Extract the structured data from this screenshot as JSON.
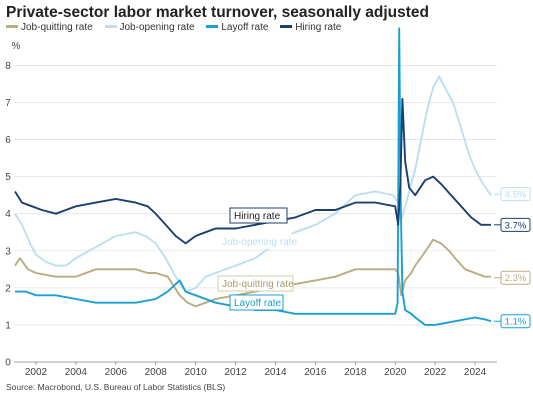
{
  "header": {
    "title": "Private-sector labor market turnover, seasonally adjusted"
  },
  "legend": [
    {
      "label": "Job-quitting rate",
      "color": "#b8ad7f"
    },
    {
      "label": "Job-opening rate",
      "color": "#bcdff0"
    },
    {
      "label": "Layoff rate",
      "color": "#1a9fd2"
    },
    {
      "label": "Hiring rate",
      "color": "#1c3f6e"
    }
  ],
  "footer": {
    "source": "Source: Macrobond, U.S. Bureau of Labor Statistics (BLS)"
  },
  "chart_data": {
    "type": "line",
    "title": "Private-sector labor market turnover, seasonally adjusted",
    "ylabel": "%",
    "xlim": [
      2000.9,
      2025.1
    ],
    "ylim": [
      0,
      8.2
    ],
    "yticks": [
      0,
      1,
      2,
      3,
      4,
      5,
      6,
      7,
      8
    ],
    "xticks": [
      2002,
      2004,
      2006,
      2008,
      2010,
      2012,
      2014,
      2016,
      2018,
      2020,
      2022,
      2024
    ],
    "grid": "horizontal",
    "legend_position": "top-left",
    "series": [
      {
        "name": "Job-quitting rate",
        "color": "#b8ad7f",
        "end_label": "2.3%",
        "inline_label": "Job-quitting rate",
        "points": [
          [
            2000.95,
            2.6
          ],
          [
            2001.2,
            2.8
          ],
          [
            2001.6,
            2.5
          ],
          [
            2002.0,
            2.4
          ],
          [
            2003.0,
            2.3
          ],
          [
            2004.0,
            2.3
          ],
          [
            2005.0,
            2.5
          ],
          [
            2006.0,
            2.5
          ],
          [
            2007.0,
            2.5
          ],
          [
            2007.6,
            2.4
          ],
          [
            2008.0,
            2.4
          ],
          [
            2008.6,
            2.3
          ],
          [
            2009.2,
            1.8
          ],
          [
            2009.6,
            1.6
          ],
          [
            2010.0,
            1.5
          ],
          [
            2010.5,
            1.6
          ],
          [
            2011.0,
            1.7
          ],
          [
            2012.0,
            1.8
          ],
          [
            2013.0,
            1.9
          ],
          [
            2014.0,
            2.0
          ],
          [
            2015.0,
            2.1
          ],
          [
            2016.0,
            2.2
          ],
          [
            2017.0,
            2.3
          ],
          [
            2018.0,
            2.5
          ],
          [
            2019.0,
            2.5
          ],
          [
            2020.0,
            2.5
          ],
          [
            2020.15,
            2.4
          ],
          [
            2020.3,
            1.8
          ],
          [
            2020.5,
            2.2
          ],
          [
            2020.8,
            2.4
          ],
          [
            2021.0,
            2.6
          ],
          [
            2021.4,
            2.9
          ],
          [
            2021.9,
            3.3
          ],
          [
            2022.3,
            3.2
          ],
          [
            2022.7,
            3.0
          ],
          [
            2023.0,
            2.8
          ],
          [
            2023.5,
            2.5
          ],
          [
            2024.0,
            2.4
          ],
          [
            2024.5,
            2.3
          ],
          [
            2024.8,
            2.3
          ]
        ]
      },
      {
        "name": "Job-opening rate",
        "color": "#bcdff0",
        "end_label": "4.5%",
        "inline_label": "Job-opening rate",
        "points": [
          [
            2000.95,
            4.0
          ],
          [
            2001.3,
            3.7
          ],
          [
            2001.7,
            3.2
          ],
          [
            2002.0,
            2.9
          ],
          [
            2002.5,
            2.7
          ],
          [
            2003.0,
            2.6
          ],
          [
            2003.5,
            2.6
          ],
          [
            2004.0,
            2.8
          ],
          [
            2005.0,
            3.1
          ],
          [
            2006.0,
            3.4
          ],
          [
            2007.0,
            3.5
          ],
          [
            2007.5,
            3.4
          ],
          [
            2008.0,
            3.2
          ],
          [
            2008.5,
            2.8
          ],
          [
            2009.0,
            2.3
          ],
          [
            2009.5,
            1.9
          ],
          [
            2010.0,
            2.0
          ],
          [
            2010.5,
            2.3
          ],
          [
            2011.0,
            2.4
          ],
          [
            2012.0,
            2.6
          ],
          [
            2013.0,
            2.8
          ],
          [
            2014.0,
            3.2
          ],
          [
            2015.0,
            3.5
          ],
          [
            2016.0,
            3.7
          ],
          [
            2017.0,
            4.0
          ],
          [
            2018.0,
            4.5
          ],
          [
            2019.0,
            4.6
          ],
          [
            2019.9,
            4.5
          ],
          [
            2020.15,
            4.3
          ],
          [
            2020.35,
            3.9
          ],
          [
            2020.6,
            4.4
          ],
          [
            2021.0,
            5.2
          ],
          [
            2021.3,
            6.0
          ],
          [
            2021.6,
            6.8
          ],
          [
            2021.9,
            7.4
          ],
          [
            2022.2,
            7.7
          ],
          [
            2022.5,
            7.4
          ],
          [
            2022.9,
            7.0
          ],
          [
            2023.3,
            6.3
          ],
          [
            2023.7,
            5.6
          ],
          [
            2024.0,
            5.2
          ],
          [
            2024.4,
            4.8
          ],
          [
            2024.8,
            4.5
          ]
        ]
      },
      {
        "name": "Layoff rate",
        "color": "#1a9fd2",
        "end_label": "1.1%",
        "inline_label": "Layoff rate",
        "points": [
          [
            2000.95,
            1.9
          ],
          [
            2001.5,
            1.9
          ],
          [
            2002.0,
            1.8
          ],
          [
            2003.0,
            1.8
          ],
          [
            2004.0,
            1.7
          ],
          [
            2005.0,
            1.6
          ],
          [
            2006.0,
            1.6
          ],
          [
            2007.0,
            1.6
          ],
          [
            2008.0,
            1.7
          ],
          [
            2008.6,
            1.9
          ],
          [
            2009.0,
            2.1
          ],
          [
            2009.2,
            2.2
          ],
          [
            2009.5,
            1.9
          ],
          [
            2010.0,
            1.8
          ],
          [
            2011.0,
            1.6
          ],
          [
            2012.0,
            1.5
          ],
          [
            2013.0,
            1.4
          ],
          [
            2014.0,
            1.4
          ],
          [
            2015.0,
            1.3
          ],
          [
            2016.0,
            1.3
          ],
          [
            2017.0,
            1.3
          ],
          [
            2018.0,
            1.3
          ],
          [
            2019.0,
            1.3
          ],
          [
            2020.0,
            1.3
          ],
          [
            2020.12,
            1.6
          ],
          [
            2020.2,
            9.0
          ],
          [
            2020.28,
            4.2
          ],
          [
            2020.36,
            1.9
          ],
          [
            2020.5,
            1.4
          ],
          [
            2020.8,
            1.3
          ],
          [
            2021.0,
            1.2
          ],
          [
            2021.5,
            1.0
          ],
          [
            2022.0,
            1.0
          ],
          [
            2023.0,
            1.1
          ],
          [
            2024.0,
            1.2
          ],
          [
            2024.5,
            1.15
          ],
          [
            2024.8,
            1.1
          ]
        ]
      },
      {
        "name": "Hiring rate",
        "color": "#1c3f6e",
        "end_label": "3.7%",
        "inline_label": "Hiring rate",
        "points": [
          [
            2000.95,
            4.6
          ],
          [
            2001.3,
            4.3
          ],
          [
            2001.8,
            4.2
          ],
          [
            2002.3,
            4.1
          ],
          [
            2003.0,
            4.0
          ],
          [
            2003.5,
            4.1
          ],
          [
            2004.0,
            4.2
          ],
          [
            2005.0,
            4.3
          ],
          [
            2006.0,
            4.4
          ],
          [
            2007.0,
            4.3
          ],
          [
            2007.6,
            4.2
          ],
          [
            2008.0,
            4.0
          ],
          [
            2008.5,
            3.7
          ],
          [
            2009.0,
            3.4
          ],
          [
            2009.5,
            3.2
          ],
          [
            2010.0,
            3.4
          ],
          [
            2010.5,
            3.5
          ],
          [
            2011.0,
            3.6
          ],
          [
            2012.0,
            3.6
          ],
          [
            2013.0,
            3.7
          ],
          [
            2014.0,
            3.8
          ],
          [
            2015.0,
            3.9
          ],
          [
            2016.0,
            4.1
          ],
          [
            2017.0,
            4.1
          ],
          [
            2018.0,
            4.3
          ],
          [
            2019.0,
            4.3
          ],
          [
            2020.0,
            4.2
          ],
          [
            2020.15,
            3.7
          ],
          [
            2020.26,
            4.8
          ],
          [
            2020.36,
            7.1
          ],
          [
            2020.5,
            5.4
          ],
          [
            2020.7,
            4.7
          ],
          [
            2021.0,
            4.5
          ],
          [
            2021.5,
            4.9
          ],
          [
            2021.9,
            5.0
          ],
          [
            2022.3,
            4.8
          ],
          [
            2022.8,
            4.5
          ],
          [
            2023.3,
            4.2
          ],
          [
            2023.8,
            3.9
          ],
          [
            2024.3,
            3.7
          ],
          [
            2024.8,
            3.7
          ]
        ]
      }
    ]
  }
}
